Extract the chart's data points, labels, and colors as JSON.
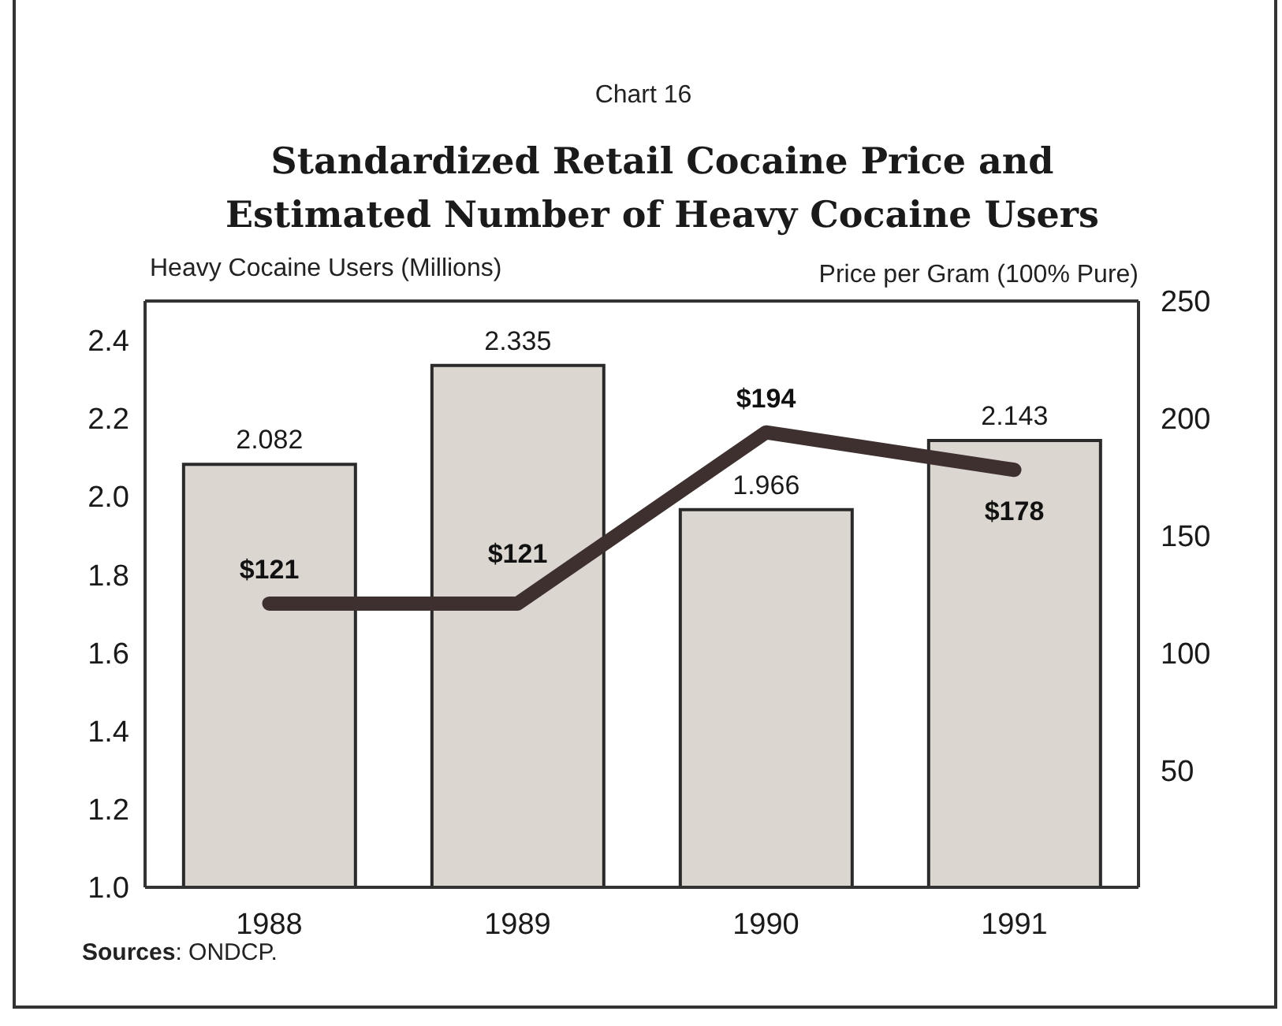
{
  "chart_data": {
    "type": "bar",
    "title": "Standardized Retail Cocaine Price and Estimated Number of Heavy Cocaine Users",
    "annotations": [
      "Chart 16",
      "Sources: ONDCP."
    ],
    "ylabel": "Heavy Cocaine Users (Millions)",
    "y2label": "Price per Gram (100% Pure)",
    "categories": [
      "1988",
      "1989",
      "1990",
      "1991"
    ],
    "series": [
      {
        "color": "#dcd6d0",
        "values": [
          2.082,
          2.335,
          1.966,
          2.143
        ],
        "value_labels": [
          "2.082",
          "2.335",
          "1.966",
          "2.143"
        ]
      },
      {
        "type": "line",
        "axis": "y2",
        "color": "#3d302e",
        "values": [
          121,
          121,
          194,
          178
        ],
        "value_labels": [
          "$121",
          "$121",
          "$194",
          "$178"
        ]
      }
    ],
    "ylim": [
      1,
      2.5
    ],
    "yticks": [
      {
        "value": 1,
        "label": "1.0"
      },
      1.2,
      1.4,
      1.6,
      1.8,
      {
        "value": 2,
        "label": "2.0"
      },
      2.2,
      2.4
    ],
    "y2lim": [
      0,
      250
    ],
    "y2ticks": [
      50,
      100,
      150,
      200,
      250
    ],
    "marker": "none"
  }
}
